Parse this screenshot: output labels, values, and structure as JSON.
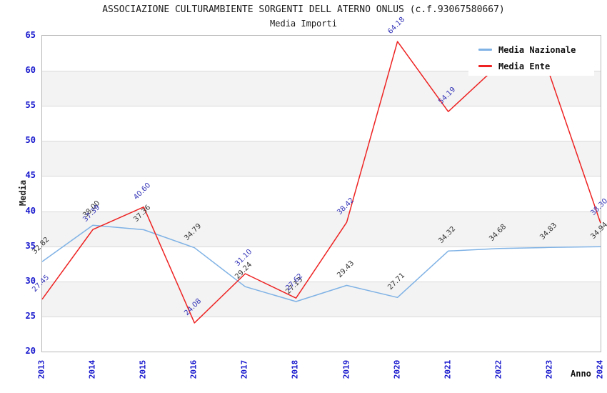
{
  "title": "ASSOCIAZIONE CULTURAMBIENTE SORGENTI DELL ATERNO ONLUS (c.f.93067580667)",
  "subtitle": "Media Importi",
  "axes": {
    "y_label": "Media",
    "x_label": "Anno",
    "tick_color": "#1717cd",
    "y_ticks": [
      20,
      25,
      30,
      35,
      40,
      45,
      50,
      55,
      60,
      65
    ],
    "x_ticks": [
      "2013",
      "2014",
      "2015",
      "2016",
      "2017",
      "2018",
      "2019",
      "2020",
      "2021",
      "2022",
      "2023",
      "2024"
    ]
  },
  "legend": {
    "items": [
      {
        "label": "Media Nazionale",
        "color": "#7fb2e5"
      },
      {
        "label": "Media Ente",
        "color": "#ee2222"
      }
    ]
  },
  "chart_data": {
    "type": "line",
    "title": "Media Importi",
    "x": [
      2013,
      2014,
      2015,
      2016,
      2017,
      2018,
      2019,
      2020,
      2021,
      2022,
      2023,
      2024
    ],
    "series": [
      {
        "name": "Media Nazionale",
        "color": "#7fb2e5",
        "label_color": "#333333",
        "values": [
          32.82,
          38.0,
          37.36,
          34.79,
          29.24,
          27.13,
          29.43,
          27.71,
          34.32,
          34.68,
          34.83,
          34.94
        ]
      },
      {
        "name": "Media Ente",
        "color": "#ee2222",
        "label_color": "#3434b8",
        "values": [
          27.45,
          37.39,
          40.6,
          24.08,
          31.1,
          27.62,
          38.42,
          64.18,
          54.19,
          60.9,
          59.4,
          38.3
        ],
        "note_labels_covered_by_legend": [
          2022,
          2023
        ]
      }
    ],
    "ylim": [
      20,
      65
    ],
    "y_step": 5,
    "grid": true,
    "band_colors": [
      "#ffffff",
      "#f3f3f3"
    ],
    "legend_position": "top-right"
  }
}
